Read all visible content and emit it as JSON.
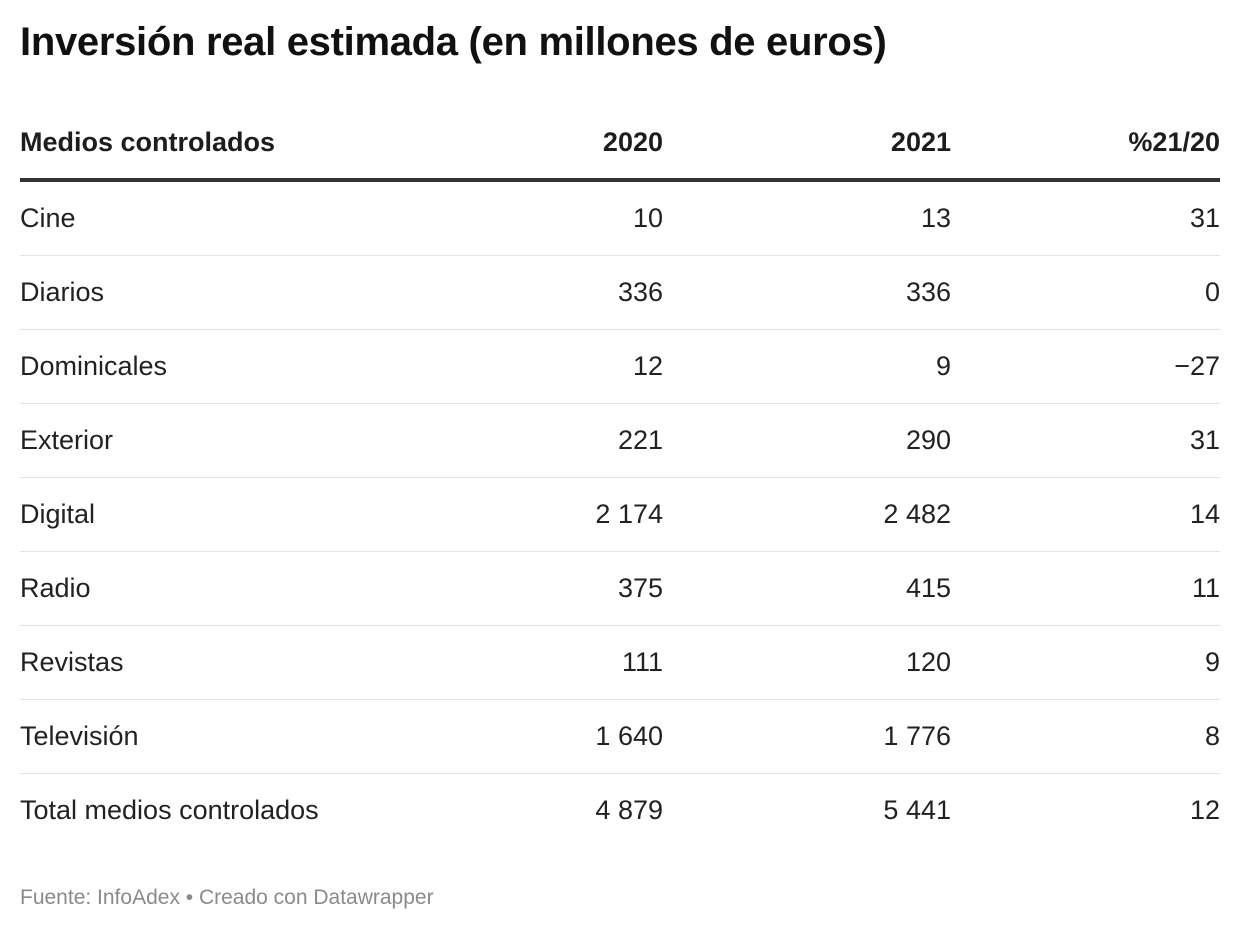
{
  "chart_data": {
    "type": "table",
    "title": "Inversión real estimada (en millones de euros)",
    "columns": [
      "Medios controlados",
      "2020",
      "2021",
      "%21/20"
    ],
    "rows": [
      [
        "Cine",
        "10",
        "13",
        "31"
      ],
      [
        "Diarios",
        "336",
        "336",
        "0"
      ],
      [
        "Dominicales",
        "12",
        "9",
        "−27"
      ],
      [
        "Exterior",
        "221",
        "290",
        "31"
      ],
      [
        "Digital",
        "2 174",
        "2 482",
        "14"
      ],
      [
        "Radio",
        "375",
        "415",
        "11"
      ],
      [
        "Revistas",
        "111",
        "120",
        "9"
      ],
      [
        "Televisión",
        "1 640",
        "1 776",
        "8"
      ],
      [
        "Total medios controlados",
        "4 879",
        "5 441",
        "12"
      ]
    ]
  },
  "footer": {
    "text": "Fuente: InfoAdex • Creado con Datawrapper"
  }
}
